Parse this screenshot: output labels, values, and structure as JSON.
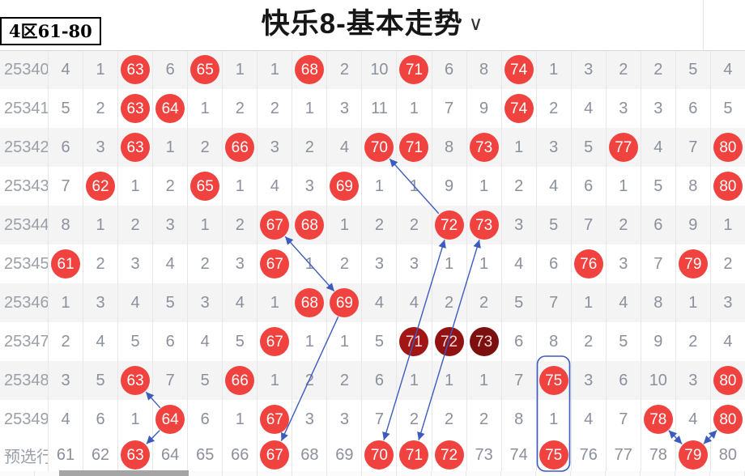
{
  "header": {
    "zone_label": "4区61-80",
    "title": "快乐8-基本走势",
    "chevron": "∨"
  },
  "colors": {
    "ball_red": "#f0423f",
    "dark": {
      "d1": "#a31616",
      "d2": "#921212",
      "d3": "#7c0f0f"
    },
    "dark_text": "#ffd9d9",
    "arrow": "#3b5bbf",
    "count_text": "#8b909b",
    "label_text": "#9aa0a8"
  },
  "rows": [
    {
      "label": "25340",
      "cells": [
        "4",
        "1",
        [
          "63",
          "h"
        ],
        "6",
        [
          "65",
          "h"
        ],
        "1",
        "1",
        [
          "68",
          "h"
        ],
        "2",
        "10",
        [
          "71",
          "h"
        ],
        "6",
        "8",
        [
          "74",
          "h"
        ],
        "1",
        "3",
        "2",
        "2",
        "5",
        "4"
      ]
    },
    {
      "label": "25341",
      "cells": [
        "5",
        "2",
        [
          "63",
          "h"
        ],
        [
          "64",
          "h"
        ],
        "1",
        "2",
        "2",
        "1",
        "3",
        "11",
        "1",
        "7",
        "9",
        [
          "74",
          "h"
        ],
        "2",
        "4",
        "3",
        "3",
        "6",
        "5"
      ]
    },
    {
      "label": "25342",
      "cells": [
        "6",
        "3",
        [
          "63",
          "h"
        ],
        "1",
        "2",
        [
          "66",
          "h"
        ],
        "3",
        "2",
        "4",
        [
          "70",
          "h"
        ],
        [
          "71",
          "h"
        ],
        "8",
        [
          "73",
          "h"
        ],
        "1",
        "3",
        "5",
        [
          "77",
          "h"
        ],
        "4",
        "7",
        [
          "80",
          "h"
        ]
      ]
    },
    {
      "label": "25343",
      "cells": [
        "7",
        [
          "62",
          "h"
        ],
        "1",
        "2",
        [
          "65",
          "h"
        ],
        "1",
        "4",
        "3",
        [
          "69",
          "h"
        ],
        "1",
        "1",
        "9",
        "1",
        "2",
        "4",
        "6",
        "1",
        "5",
        "8",
        [
          "80",
          "h"
        ]
      ]
    },
    {
      "label": "25344",
      "cells": [
        "8",
        "1",
        "2",
        "3",
        "1",
        "2",
        [
          "67",
          "h"
        ],
        [
          "68",
          "h"
        ],
        "1",
        "2",
        "2",
        [
          "72",
          "h"
        ],
        [
          "73",
          "h"
        ],
        "3",
        "5",
        "7",
        "2",
        "6",
        "9",
        "1"
      ]
    },
    {
      "label": "25345",
      "cells": [
        [
          "61",
          "h"
        ],
        "2",
        "3",
        "4",
        "2",
        "3",
        [
          "67",
          "h"
        ],
        "1",
        "2",
        "3",
        "3",
        "1",
        "1",
        "4",
        "6",
        [
          "76",
          "h"
        ],
        "3",
        "7",
        [
          "79",
          "h"
        ],
        "2"
      ]
    },
    {
      "label": "25346",
      "cells": [
        "1",
        "3",
        "4",
        "5",
        "3",
        "4",
        "1",
        [
          "68",
          "h"
        ],
        [
          "69",
          "h"
        ],
        "4",
        "4",
        "2",
        "2",
        "5",
        "7",
        "1",
        "4",
        "8",
        "1",
        "3"
      ]
    },
    {
      "label": "25347",
      "cells": [
        "2",
        "4",
        "5",
        "6",
        "4",
        "5",
        [
          "67",
          "h"
        ],
        "1",
        "1",
        "5",
        [
          "71",
          "d1"
        ],
        [
          "72",
          "d2"
        ],
        [
          "73",
          "d3"
        ],
        "6",
        "8",
        "2",
        "5",
        "9",
        "2",
        "4"
      ]
    },
    {
      "label": "25348",
      "cells": [
        "3",
        "5",
        [
          "63",
          "h"
        ],
        "7",
        "5",
        [
          "66",
          "h"
        ],
        "1",
        "2",
        "2",
        "6",
        "1",
        "1",
        "1",
        "7",
        [
          "75",
          "h"
        ],
        "3",
        "6",
        "10",
        "3",
        [
          "80",
          "h"
        ]
      ]
    },
    {
      "label": "25349",
      "cells": [
        "4",
        "6",
        "1",
        [
          "64",
          "h"
        ],
        "6",
        "1",
        [
          "67",
          "h"
        ],
        "3",
        "3",
        "7",
        "2",
        "2",
        "2",
        "8",
        "1",
        "4",
        "7",
        [
          "78",
          "h"
        ],
        "4",
        [
          "80",
          "h"
        ]
      ]
    }
  ],
  "preselect_row": {
    "label": "预选行",
    "cells": [
      "61",
      "62",
      [
        "63",
        "h"
      ],
      "64",
      "65",
      "66",
      [
        "67",
        "h"
      ],
      "68",
      "69",
      [
        "70",
        "h"
      ],
      [
        "71",
        "h"
      ],
      [
        "72",
        "h"
      ],
      "73",
      "74",
      [
        "75",
        "h"
      ],
      "76",
      "77",
      "78",
      [
        "79",
        "h"
      ],
      "80"
    ]
  },
  "arrows": [
    {
      "from": {
        "row": 9,
        "num": 64
      },
      "to": {
        "row": 8,
        "num": 63
      },
      "double": false
    },
    {
      "from": {
        "row": 9,
        "num": 64
      },
      "to": {
        "row": "p",
        "num": 63
      },
      "double": false
    },
    {
      "from": {
        "row": 6,
        "num": 69
      },
      "to": {
        "row": 4,
        "num": 67
      },
      "double": true
    },
    {
      "from": {
        "row": 6,
        "num": 69
      },
      "to": {
        "row": "p",
        "num": 67
      },
      "double": false
    },
    {
      "from": {
        "row": "p",
        "num": 70
      },
      "to": {
        "row": 4,
        "num": 72
      },
      "double": true
    },
    {
      "from": {
        "row": "p",
        "num": 71
      },
      "to": {
        "row": 4,
        "num": 73
      },
      "double": true
    },
    {
      "from": {
        "row": 4,
        "num": 72
      },
      "to": {
        "row": 2,
        "num": 70
      },
      "double": false
    },
    {
      "from": {
        "row": 9,
        "num": 78
      },
      "to": {
        "row": "p",
        "num": 79
      },
      "double": true
    },
    {
      "from": {
        "row": 9,
        "num": 80
      },
      "to": {
        "row": "p",
        "num": 79
      },
      "double": true
    }
  ],
  "highlight_box": {
    "num": 75,
    "from_row": 8
  }
}
